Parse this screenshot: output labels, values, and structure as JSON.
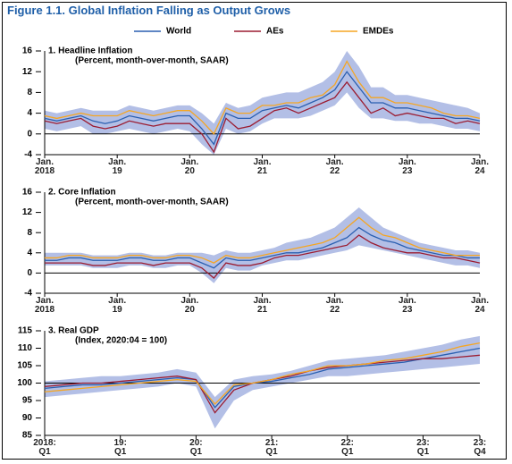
{
  "title": "Figure 1.1.  Global Inflation Falling as Output Grows",
  "legend": [
    {
      "name": "World",
      "color": "#2a5fb0"
    },
    {
      "name": "AEs",
      "color": "#9b1c31"
    },
    {
      "name": "EMDEs",
      "color": "#f5a623"
    }
  ],
  "chart_data": [
    {
      "type": "line",
      "title": "1. Headline Inflation",
      "subtitle": "(Percent, month-over-month, SAAR)",
      "x": [
        2018,
        2018.167,
        2018.333,
        2018.5,
        2018.667,
        2018.833,
        2019,
        2019.167,
        2019.333,
        2019.5,
        2019.667,
        2019.833,
        2020,
        2020.167,
        2020.333,
        2020.5,
        2020.667,
        2020.833,
        2021,
        2021.167,
        2021.333,
        2021.5,
        2021.667,
        2021.833,
        2022,
        2022.167,
        2022.333,
        2022.5,
        2022.667,
        2022.833,
        2023,
        2023.167,
        2023.333,
        2023.5,
        2023.667,
        2023.833,
        2024
      ],
      "xlim": [
        2018,
        2024
      ],
      "xticks": [
        {
          "value": 2018,
          "label": "Jan.\n2018"
        },
        {
          "value": 2019,
          "label": "Jan.\n19"
        },
        {
          "value": 2020,
          "label": "Jan.\n20"
        },
        {
          "value": 2021,
          "label": "Jan.\n21"
        },
        {
          "value": 2022,
          "label": "Jan.\n22"
        },
        {
          "value": 2023,
          "label": "Jan.\n23"
        },
        {
          "value": 2024,
          "label": "Jan.\n24"
        }
      ],
      "ylim": [
        -4,
        16
      ],
      "yticks": [
        -4,
        0,
        4,
        8,
        12,
        16
      ],
      "baseline": 0,
      "band_color": "#b3bfe6",
      "band": {
        "lower": [
          1,
          0.5,
          1,
          1.5,
          0,
          0,
          0.5,
          1,
          0.5,
          0,
          0.5,
          1,
          0.5,
          -2,
          -4,
          1,
          0,
          0.5,
          2,
          3,
          3,
          3,
          3.5,
          4.5,
          5.5,
          8,
          5,
          3,
          3,
          2.5,
          2.5,
          2,
          2,
          1.5,
          1,
          1,
          0.5
        ],
        "upper": [
          4.5,
          4,
          4.5,
          5,
          4.5,
          4.5,
          4.5,
          5.5,
          5,
          4.5,
          5,
          5.5,
          5.5,
          4,
          2,
          6,
          5,
          5.5,
          7,
          7.5,
          8,
          8,
          9,
          10,
          12,
          16,
          13,
          9,
          9,
          7.5,
          7.5,
          7,
          6.5,
          6,
          5.5,
          5,
          4
        ]
      },
      "series": [
        {
          "values": [
            3,
            2.5,
            3,
            3.5,
            2.5,
            2,
            2.5,
            3.5,
            3,
            2.5,
            3,
            3.5,
            3.5,
            1,
            -2,
            4,
            3,
            3,
            4.5,
            5,
            5.5,
            5,
            6,
            7,
            8.5,
            12,
            9,
            6,
            6,
            5,
            5,
            4.5,
            4,
            3.5,
            3,
            3,
            2.5
          ]
        },
        {
          "values": [
            2.5,
            2,
            2.5,
            3,
            1.5,
            1,
            1.5,
            2.5,
            2,
            1.5,
            2,
            2,
            2,
            0,
            -3.5,
            3,
            1,
            1.5,
            3,
            4.5,
            5,
            4,
            5,
            6,
            7,
            10,
            7,
            4,
            5,
            3.5,
            4,
            3.5,
            3,
            3,
            2,
            2.5,
            2
          ]
        },
        {
          "values": [
            3.5,
            3,
            3.5,
            4,
            3.5,
            3.5,
            3.5,
            4.5,
            4,
            3.5,
            4,
            4.5,
            4.5,
            2.5,
            0,
            5,
            4,
            4,
            5.5,
            5.5,
            6,
            6,
            7,
            7.5,
            9.5,
            14,
            10,
            7,
            7,
            6,
            6,
            5.5,
            5,
            4,
            3.5,
            3.5,
            3
          ]
        }
      ]
    },
    {
      "type": "line",
      "title": "2. Core Inflation",
      "subtitle": "(Percent, month-over-month, SAAR)",
      "x": [
        2018,
        2018.167,
        2018.333,
        2018.5,
        2018.667,
        2018.833,
        2019,
        2019.167,
        2019.333,
        2019.5,
        2019.667,
        2019.833,
        2020,
        2020.167,
        2020.333,
        2020.5,
        2020.667,
        2020.833,
        2021,
        2021.167,
        2021.333,
        2021.5,
        2021.667,
        2021.833,
        2022,
        2022.167,
        2022.333,
        2022.5,
        2022.667,
        2022.833,
        2023,
        2023.167,
        2023.333,
        2023.5,
        2023.667,
        2023.833,
        2024
      ],
      "xlim": [
        2018,
        2024
      ],
      "xticks": [
        {
          "value": 2018,
          "label": "Jan.\n2018"
        },
        {
          "value": 2019,
          "label": "Jan.\n19"
        },
        {
          "value": 2020,
          "label": "Jan.\n20"
        },
        {
          "value": 2021,
          "label": "Jan.\n21"
        },
        {
          "value": 2022,
          "label": "Jan.\n22"
        },
        {
          "value": 2023,
          "label": "Jan.\n23"
        },
        {
          "value": 2024,
          "label": "Jan.\n24"
        }
      ],
      "ylim": [
        -4,
        16
      ],
      "yticks": [
        -4,
        0,
        4,
        8,
        12,
        16
      ],
      "baseline": 0,
      "band_color": "#b3bfe6",
      "band": {
        "lower": [
          1.5,
          1.5,
          1.5,
          1.5,
          1,
          1,
          1,
          1.5,
          1.5,
          1,
          1,
          1.5,
          1.5,
          0,
          -2,
          1,
          0.5,
          0.5,
          1.5,
          2,
          2.5,
          2.5,
          3,
          3.5,
          4,
          4.5,
          5.5,
          5,
          4.5,
          4,
          3.5,
          3,
          2.5,
          2,
          1.5,
          1.5,
          1
        ],
        "upper": [
          4,
          4,
          4,
          4,
          3.5,
          3.5,
          3.5,
          4,
          4,
          3.5,
          3.5,
          4,
          4,
          4,
          3.5,
          4.5,
          4,
          4,
          4.5,
          5,
          6,
          6.5,
          7,
          8,
          9,
          11,
          13,
          11,
          9,
          8,
          7,
          6,
          5.5,
          5,
          4.5,
          4.5,
          4
        ]
      },
      "series": [
        {
          "values": [
            2.5,
            2.5,
            3,
            3,
            2.5,
            2.5,
            2.5,
            3,
            3,
            2.5,
            2.5,
            3,
            3,
            2,
            1,
            3,
            2.5,
            2.5,
            3,
            3.5,
            4,
            4,
            4.5,
            5,
            6,
            7,
            9,
            7.5,
            6.5,
            6,
            5,
            4.5,
            4,
            3.5,
            3.5,
            3,
            3
          ]
        },
        {
          "values": [
            2,
            2,
            2,
            2,
            1.5,
            1.5,
            2,
            2,
            2,
            1.5,
            2,
            2,
            2,
            1,
            -1,
            2,
            1.5,
            1.5,
            2,
            3,
            3.5,
            3.5,
            4,
            4.5,
            5,
            5.5,
            7.5,
            6,
            5,
            4.5,
            4,
            4,
            3.5,
            3,
            3,
            2.5,
            2
          ]
        },
        {
          "values": [
            3,
            3,
            3.5,
            3.5,
            3,
            3,
            3,
            3.5,
            3.5,
            3,
            3,
            3.5,
            3.5,
            3,
            2,
            3.5,
            3,
            3,
            3.5,
            4,
            4.5,
            5,
            5.5,
            6,
            7,
            9,
            11,
            9,
            7.5,
            7,
            6,
            5,
            4.5,
            4,
            3.5,
            3.5,
            3.5
          ]
        }
      ]
    },
    {
      "type": "line",
      "title": "3. Real GDP",
      "subtitle": "(Index, 2020:04 = 100)",
      "x": [
        2018,
        2018.25,
        2018.5,
        2018.75,
        2019,
        2019.25,
        2019.5,
        2019.75,
        2020,
        2020.25,
        2020.5,
        2020.75,
        2021,
        2021.25,
        2021.5,
        2021.75,
        2022,
        2022.25,
        2022.5,
        2022.75,
        2023,
        2023.25,
        2023.5,
        2023.75
      ],
      "xlim": [
        2018,
        2023.75
      ],
      "xticks": [
        {
          "value": 2018,
          "label": "2018:\nQ1"
        },
        {
          "value": 2019,
          "label": "19:\nQ1"
        },
        {
          "value": 2020,
          "label": "20:\nQ1"
        },
        {
          "value": 2021,
          "label": "21:\nQ1"
        },
        {
          "value": 2022,
          "label": "22:\nQ1"
        },
        {
          "value": 2023,
          "label": "23:\nQ1"
        },
        {
          "value": 2023.75,
          "label": "23:\nQ4"
        }
      ],
      "ylim": [
        85,
        115
      ],
      "yticks": [
        85,
        90,
        95,
        100,
        105,
        110,
        115
      ],
      "baseline": 100,
      "band_color": "#b3bfe6",
      "band": {
        "lower": [
          96,
          96.5,
          97,
          97.5,
          98,
          98.5,
          99,
          100,
          99,
          87,
          95,
          98,
          99,
          100,
          101,
          102,
          102,
          102.5,
          103,
          103.5,
          104,
          104.5,
          105,
          105.5
        ],
        "upper": [
          100.5,
          101,
          101.5,
          102,
          102,
          102.5,
          103,
          104,
          103,
          96,
          101,
          102,
          102.5,
          103.5,
          105,
          106.5,
          107,
          107.5,
          108,
          109,
          110,
          111,
          112.5,
          113.5
        ]
      },
      "series": [
        {
          "values": [
            98.5,
            99,
            99.5,
            99.5,
            100,
            100.5,
            101,
            101.5,
            101,
            93,
            99,
            100,
            100.5,
            101.5,
            102.5,
            104,
            104.5,
            105,
            105.5,
            106,
            107,
            108,
            109,
            110
          ]
        },
        {
          "values": [
            99,
            99.5,
            100,
            100,
            100.5,
            101,
            101.5,
            102,
            101,
            91.5,
            98,
            100,
            101,
            102,
            103.5,
            104.5,
            105,
            105.5,
            106,
            106.5,
            107,
            107,
            107.5,
            108
          ]
        },
        {
          "values": [
            97.5,
            98,
            98.5,
            99,
            99.5,
            100,
            100.5,
            101,
            100.5,
            94,
            99.5,
            100,
            101,
            102.5,
            103.5,
            105,
            105,
            105.5,
            106.5,
            107,
            108,
            109,
            110.5,
            111.5
          ]
        }
      ]
    }
  ]
}
